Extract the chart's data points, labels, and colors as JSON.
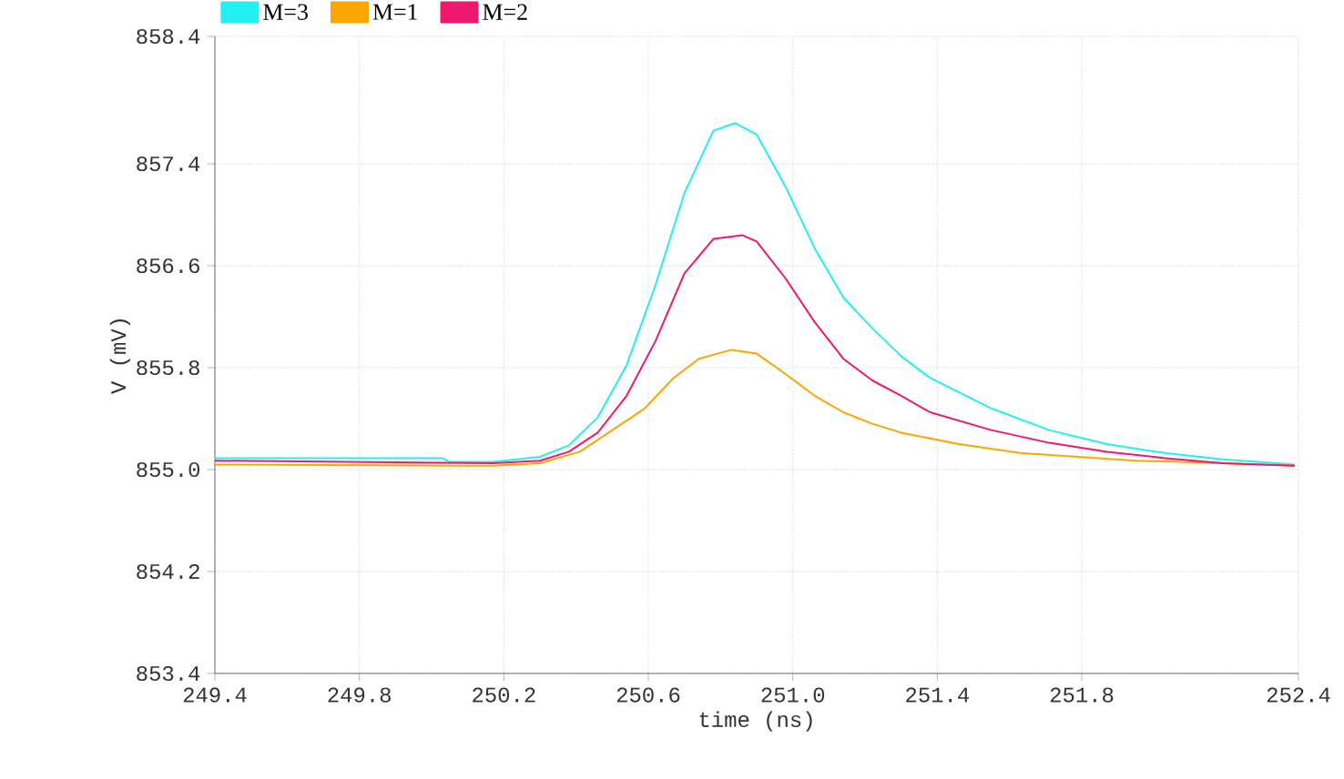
{
  "chart_data": {
    "type": "line",
    "xlabel": "time (ns)",
    "ylabel": "V (mV)",
    "xlim": [
      249.4,
      252.4
    ],
    "ylim": [
      853.4,
      858.4
    ],
    "xticks": [
      249.4,
      249.8,
      250.2,
      250.6,
      {
        "value": 251.0,
        "label": "251.0"
      },
      251.4,
      251.8,
      252.4
    ],
    "yticks": [
      853.4,
      854.2,
      {
        "value": 855.0,
        "label": "855.0"
      },
      855.8,
      856.6,
      857.4,
      858.4
    ],
    "grid": true,
    "legend": "top left",
    "marker": "none",
    "line_style": "solid",
    "series": [
      {
        "name": "M=3",
        "color": "#22f0f0",
        "x": [
          249.4,
          250.03,
          250.05,
          250.17,
          250.3,
          250.38,
          250.46,
          250.54,
          250.62,
          250.7,
          250.78,
          250.84,
          250.9,
          250.98,
          251.06,
          251.14,
          251.22,
          251.3,
          251.38,
          251.55,
          251.71,
          251.87,
          252.03,
          252.19,
          252.39
        ],
        "values": [
          855.09,
          855.09,
          855.06,
          855.06,
          855.1,
          855.19,
          855.41,
          855.82,
          856.45,
          857.17,
          857.66,
          857.72,
          857.63,
          857.22,
          856.74,
          856.35,
          856.11,
          855.89,
          855.72,
          855.48,
          855.31,
          855.2,
          855.13,
          855.08,
          855.04
        ]
      },
      {
        "name": "M=1",
        "color": "#ffa500",
        "x": [
          249.4,
          250.17,
          250.3,
          250.41,
          250.49,
          250.59,
          250.67,
          250.74,
          250.83,
          250.9,
          250.98,
          251.06,
          251.14,
          251.22,
          251.3,
          251.46,
          251.63,
          251.79,
          251.95,
          252.19,
          252.39
        ],
        "values": [
          855.04,
          855.03,
          855.05,
          855.14,
          855.29,
          855.48,
          855.72,
          855.87,
          855.94,
          855.91,
          855.75,
          855.58,
          855.45,
          855.36,
          855.29,
          855.2,
          855.13,
          855.1,
          855.07,
          855.05,
          855.03
        ]
      },
      {
        "name": "M=2",
        "color": "#f0186e",
        "x": [
          249.4,
          250.17,
          250.3,
          250.38,
          250.46,
          250.54,
          250.62,
          250.7,
          250.78,
          250.86,
          250.9,
          250.98,
          251.06,
          251.14,
          251.22,
          251.3,
          251.38,
          251.55,
          251.71,
          251.87,
          252.03,
          252.19,
          252.39
        ],
        "values": [
          855.07,
          855.05,
          855.07,
          855.14,
          855.29,
          855.58,
          856.01,
          856.54,
          856.81,
          856.84,
          856.79,
          856.5,
          856.16,
          855.87,
          855.7,
          855.58,
          855.45,
          855.31,
          855.21,
          855.14,
          855.09,
          855.05,
          855.03
        ]
      }
    ]
  }
}
